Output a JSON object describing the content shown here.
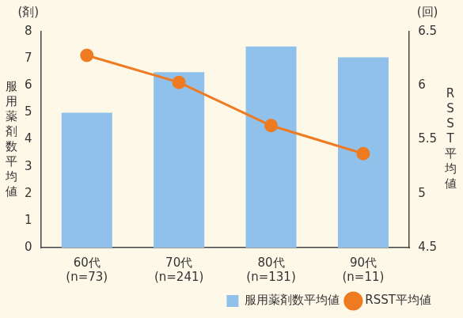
{
  "chart_data": {
    "type": "bar",
    "categories": [
      "60代\n(n=73)",
      "70代\n(n=241)",
      "80代\n(n=131)",
      "90代\n(n=11)"
    ],
    "ylabel": "服用薬剤数平均値",
    "y_unit": "(剤)",
    "y2label": "RSST平均値",
    "y2_unit": "(回)",
    "ylim": [
      0,
      8
    ],
    "yticks": [
      0,
      1,
      2,
      3,
      4,
      5,
      6,
      7,
      8
    ],
    "y2lim": [
      4.5,
      6.5
    ],
    "y2ticks": [
      4.5,
      5,
      5.5,
      6,
      6.5
    ],
    "grid": false,
    "legend": "bottom",
    "series": [
      {
        "name": "服用薬剤数平均値",
        "type": "bar",
        "color": "#8fc1ea",
        "values": [
          5.0,
          6.5,
          7.45,
          7.05
        ]
      },
      {
        "name": "RSST平均値",
        "type": "line",
        "color": "#ee7a22",
        "marker": "circle",
        "axis": "y2",
        "values": [
          6.28,
          6.03,
          5.63,
          5.37
        ]
      }
    ]
  }
}
